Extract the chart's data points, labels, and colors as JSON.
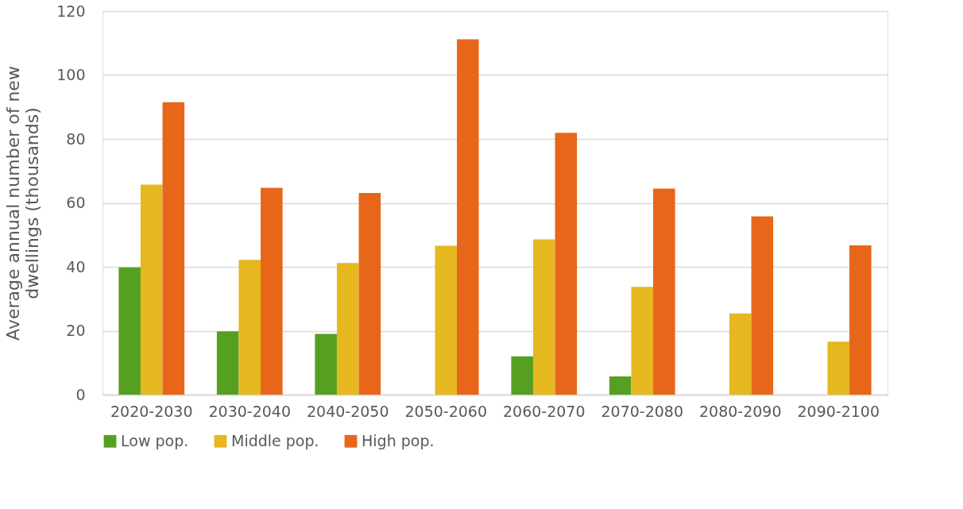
{
  "chart_data": {
    "type": "bar",
    "ylabel": "Average annual number of new\ndwellings (thousands)",
    "categories": [
      "2020-2030",
      "2030-2040",
      "2040-2050",
      "2050-2060",
      "2060-2070",
      "2070-2080",
      "2080-2090",
      "2090-2100"
    ],
    "series": [
      {
        "name": "Low pop.",
        "color": "#56a021",
        "values": [
          39.8,
          19.8,
          19.0,
          null,
          12.0,
          5.7,
          null,
          null
        ]
      },
      {
        "name": "Middle pop.",
        "color": "#e5b820",
        "values": [
          65.7,
          42.2,
          41.2,
          46.6,
          48.6,
          33.7,
          25.4,
          16.6
        ]
      },
      {
        "name": "High pop.",
        "color": "#e8661a",
        "values": [
          91.5,
          64.7,
          63.1,
          111.2,
          81.9,
          64.5,
          55.8,
          46.7
        ]
      }
    ],
    "ylim": [
      0,
      120
    ],
    "yticks": [
      0,
      20,
      40,
      60,
      80,
      100,
      120
    ],
    "grid": "y",
    "legend": "bottom"
  }
}
